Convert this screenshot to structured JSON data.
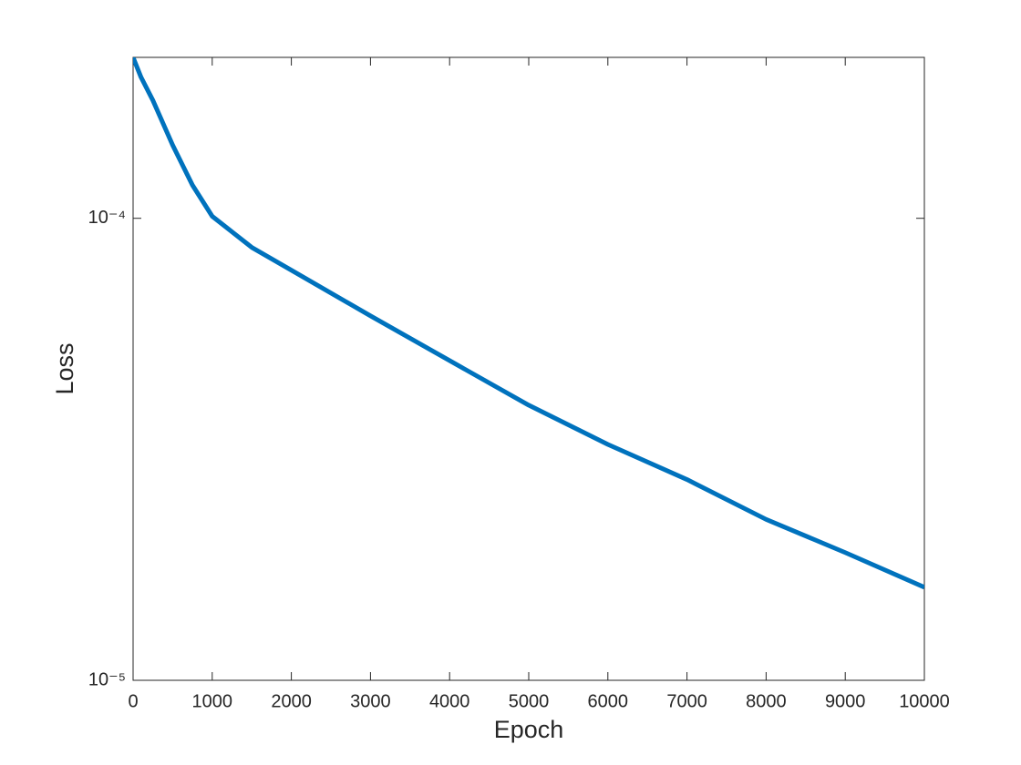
{
  "chart_data": {
    "type": "line",
    "xlabel": "Epoch",
    "ylabel": "Loss",
    "xlim": [
      0,
      10000
    ],
    "xticks": [
      0,
      1000,
      2000,
      3000,
      4000,
      5000,
      6000,
      7000,
      8000,
      9000,
      10000
    ],
    "ylim": [
      1e-05,
      0.000223
    ],
    "yticks": [
      {
        "value": 1e-05,
        "label": "10⁻⁵"
      },
      {
        "value": 0.0001,
        "label": "10⁻⁴"
      }
    ],
    "yscale": "log",
    "grid": false,
    "x": [
      0,
      100,
      250,
      500,
      750,
      1000,
      1500,
      2000,
      3000,
      4000,
      5000,
      6000,
      7000,
      8000,
      9000,
      10000
    ],
    "series": [
      {
        "color": "#0072bd",
        "values": [
          0.000223,
          0.000202,
          0.00018,
          0.000144,
          0.000118,
          0.000101,
          8.65e-05,
          7.72e-05,
          6.15e-05,
          4.92e-05,
          3.94e-05,
          3.24e-05,
          2.72e-05,
          2.23e-05,
          1.89e-05,
          1.59e-05
        ]
      }
    ]
  }
}
